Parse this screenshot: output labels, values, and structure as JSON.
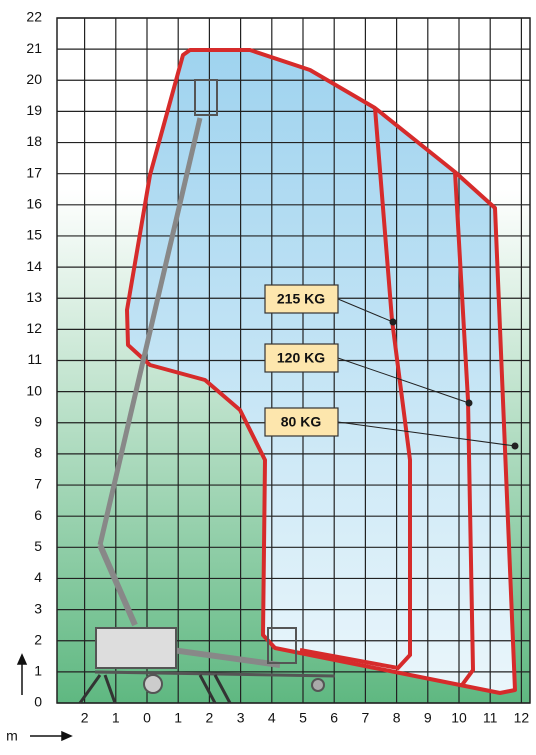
{
  "y_axis": {
    "labels": [
      "0",
      "1",
      "2",
      "3",
      "4",
      "5",
      "6",
      "7",
      "8",
      "9",
      "10",
      "11",
      "12",
      "13",
      "14",
      "15",
      "16",
      "17",
      "18",
      "19",
      "20",
      "21",
      "22"
    ]
  },
  "x_axis": {
    "labels": [
      "2",
      "1",
      "0",
      "1",
      "2",
      "3",
      "4",
      "5",
      "6",
      "7",
      "8",
      "9",
      "10",
      "11",
      "12"
    ],
    "unit": "m"
  },
  "load_labels": [
    "215 KG",
    "120 KG",
    "80 KG"
  ]
}
